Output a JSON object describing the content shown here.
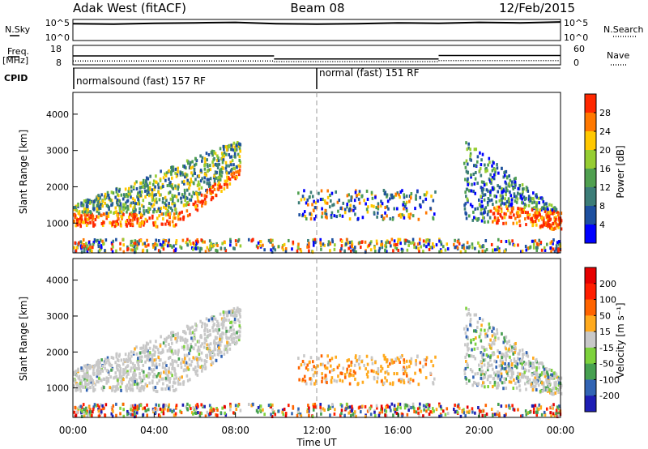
{
  "header": {
    "site": "Adak West (fitACF)",
    "beam": "Beam 08",
    "date": "12/Feb/2015"
  },
  "chart_data": [
    {
      "type": "line",
      "name_left": "N.Sky",
      "name_right": "N.Search",
      "left_ticks": [
        "10^5",
        "10^0"
      ],
      "right_ticks": [
        "10^5",
        "10^0"
      ],
      "x": [
        0,
        2,
        4,
        6,
        8,
        10,
        12,
        14,
        16,
        18,
        20,
        22,
        24
      ],
      "series": [
        {
          "values": [
            4.0,
            3.9,
            4.1,
            4.2,
            4.3,
            4.0,
            3.9,
            4.0,
            4.2,
            4.1,
            4.3,
            4.2,
            4.4
          ]
        }
      ]
    },
    {
      "type": "line",
      "label_left_1": "Freq.",
      "label_left_2": "[MHz]",
      "label_right": "Nave",
      "left_ticks": [
        "18",
        "8"
      ],
      "right_ticks": [
        "60",
        "0"
      ],
      "freq_segments": [
        {
          "x0": 0.0,
          "x1": 9.9,
          "y": 12.6
        },
        {
          "x0": 9.9,
          "x1": 18.0,
          "y": 11.0
        },
        {
          "x0": 18.0,
          "x1": 24.0,
          "y": 12.8
        }
      ],
      "nave_segments": [
        {
          "x0": 0.0,
          "x1": 9.9,
          "y": 12
        },
        {
          "x0": 9.9,
          "x1": 18.0,
          "y": 10
        },
        {
          "x0": 18.0,
          "x1": 24.0,
          "y": 13
        }
      ]
    },
    {
      "type": "table",
      "label": "CPID",
      "entries": [
        {
          "start": 0,
          "text": "normalsound (fast) 157 RF"
        },
        {
          "start": 12,
          "text": "normal (fast) 151 RF"
        }
      ]
    },
    {
      "type": "heatmap",
      "parameter": "power",
      "ylabel": "Slant Range [km]",
      "ylim": [
        180,
        4600
      ],
      "yticks": [
        1000,
        2000,
        3000,
        4000
      ],
      "xlim": [
        0,
        24
      ],
      "colorbar_label": "Power [dB]",
      "colorbar_ticks": [
        "28",
        "24",
        "20",
        "16",
        "12",
        "8",
        "4"
      ],
      "colors": [
        "#0000ff",
        "#1e50a0",
        "#3c7d78",
        "#50a050",
        "#96cd32",
        "#ffc800",
        "#ff7800",
        "#ff2800"
      ]
    },
    {
      "type": "heatmap",
      "parameter": "velocity",
      "ylabel": "Slant Range [km]",
      "ylim": [
        180,
        4600
      ],
      "yticks": [
        1000,
        2000,
        3000,
        4000
      ],
      "xlim": [
        0,
        24
      ],
      "colorbar_label": "Velocity [m s⁻¹]",
      "colorbar_ticks": [
        "200",
        "100",
        "50",
        "15",
        "-15",
        "-50",
        "-100",
        "-200"
      ],
      "colors": [
        "#1e1eb4",
        "#3264b4",
        "#46a050",
        "#7dd23c",
        "#c8c8c8",
        "#ffaa1e",
        "#ff6400",
        "#ff1e00",
        "#e60000"
      ]
    }
  ],
  "x_axis": {
    "ticks": [
      "00:00",
      "04:00",
      "08:00",
      "12:00",
      "16:00",
      "20:00",
      "00:00"
    ],
    "tick_hours": [
      0,
      4,
      8,
      12,
      16,
      20,
      24
    ],
    "title": "Time UT"
  }
}
